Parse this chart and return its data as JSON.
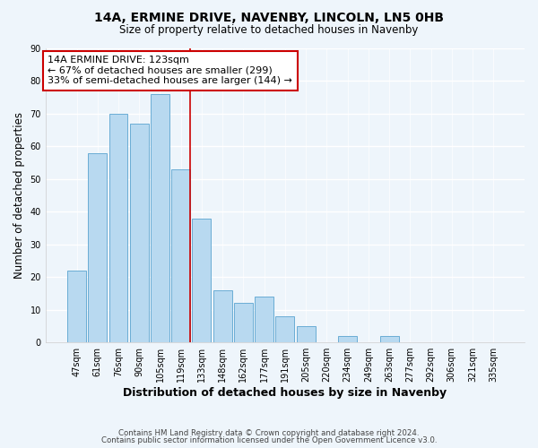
{
  "title": "14A, ERMINE DRIVE, NAVENBY, LINCOLN, LN5 0HB",
  "subtitle": "Size of property relative to detached houses in Navenby",
  "xlabel": "Distribution of detached houses by size in Navenby",
  "ylabel": "Number of detached properties",
  "bar_labels": [
    "47sqm",
    "61sqm",
    "76sqm",
    "90sqm",
    "105sqm",
    "119sqm",
    "133sqm",
    "148sqm",
    "162sqm",
    "177sqm",
    "191sqm",
    "205sqm",
    "220sqm",
    "234sqm",
    "249sqm",
    "263sqm",
    "277sqm",
    "292sqm",
    "306sqm",
    "321sqm",
    "335sqm"
  ],
  "bar_values": [
    22,
    58,
    70,
    67,
    76,
    53,
    38,
    16,
    12,
    14,
    8,
    5,
    0,
    2,
    0,
    2,
    0,
    0,
    0,
    0,
    0
  ],
  "bar_color": "#b8d9f0",
  "bar_edge_color": "#6aadd5",
  "red_line_after_index": 5,
  "highlight_color": "#cc0000",
  "ylim": [
    0,
    90
  ],
  "yticks": [
    0,
    10,
    20,
    30,
    40,
    50,
    60,
    70,
    80,
    90
  ],
  "annotation_title": "14A ERMINE DRIVE: 123sqm",
  "annotation_line1": "← 67% of detached houses are smaller (299)",
  "annotation_line2": "33% of semi-detached houses are larger (144) →",
  "annotation_box_facecolor": "#ffffff",
  "annotation_box_edgecolor": "#cc0000",
  "footer1": "Contains HM Land Registry data © Crown copyright and database right 2024.",
  "footer2": "Contains public sector information licensed under the Open Government Licence v3.0.",
  "background_color": "#eef5fb",
  "grid_color": "#ffffff",
  "figsize": [
    6.0,
    5.0
  ],
  "dpi": 100
}
